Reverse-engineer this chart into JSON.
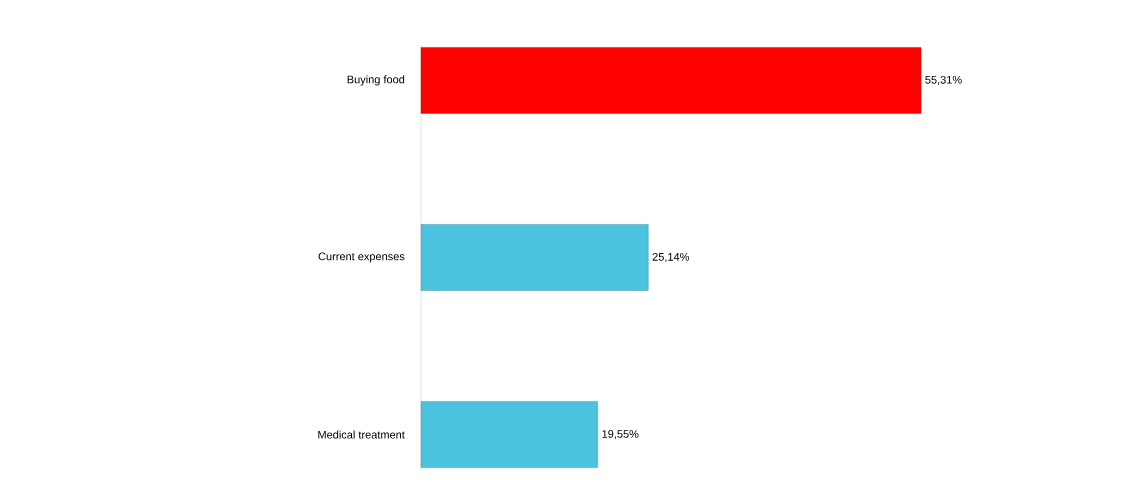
{
  "chart_data": {
    "type": "bar",
    "orientation": "horizontal",
    "categories": [
      "Buying   food",
      "Current   expenses",
      "Medical treatment"
    ],
    "values": [
      55.31,
      25.14,
      19.55
    ],
    "colors": [
      "#ff0000",
      "#4bc3de",
      "#4bc3de"
    ],
    "value_labels": [
      "55,31%",
      "25,14%",
      "19,55%"
    ],
    "grid": false
  }
}
